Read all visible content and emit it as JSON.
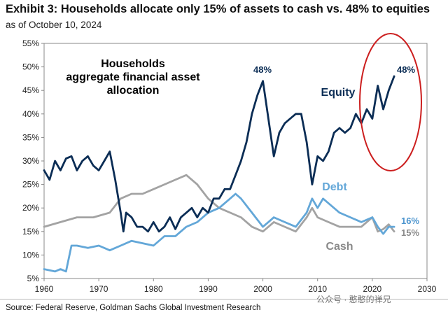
{
  "header": {
    "title": "Exhibit 3: Households allocate only 15% of assets to cash vs. 48% to equities",
    "subtitle": "as of October 10, 2024"
  },
  "footer": {
    "source": "Source: Federal Reserve, Goldman Sachs Global Investment Research",
    "watermark": "公众号 · 憨憨的禅兄"
  },
  "chart_data": {
    "type": "line",
    "title": "Exhibit 3: Households allocate only 15% of assets to cash vs. 48% to equities",
    "subtitle": "as of October 10, 2024",
    "xlabel": "",
    "ylabel": "",
    "xlim": [
      1960,
      2030
    ],
    "ylim": [
      5,
      55
    ],
    "x_ticks": [
      "1960",
      "1970",
      "1980",
      "1990",
      "2000",
      "2010",
      "2020",
      "2030"
    ],
    "y_ticks": [
      "5%",
      "10%",
      "15%",
      "20%",
      "25%",
      "30%",
      "35%",
      "40%",
      "45%",
      "50%",
      "55%"
    ],
    "grid": false,
    "legend": "none",
    "annotations": {
      "panel_label": [
        "Households",
        "aggregate financial asset",
        "allocation"
      ],
      "equity_peak": "48%",
      "equity_end": "48%",
      "debt_end": "16%",
      "cash_end": "15%"
    },
    "series": [
      {
        "name": "Equity",
        "color": "#0b2d55",
        "points": [
          [
            1960,
            28
          ],
          [
            1961,
            26
          ],
          [
            1962,
            30
          ],
          [
            1963,
            28
          ],
          [
            1964,
            30.5
          ],
          [
            1965,
            31
          ],
          [
            1966,
            28
          ],
          [
            1967,
            30
          ],
          [
            1968,
            31
          ],
          [
            1969,
            29
          ],
          [
            1970,
            28
          ],
          [
            1971,
            30
          ],
          [
            1972,
            32
          ],
          [
            1973,
            26
          ],
          [
            1974,
            19
          ],
          [
            1974.5,
            15
          ],
          [
            1975,
            19
          ],
          [
            1976,
            18
          ],
          [
            1977,
            16
          ],
          [
            1978,
            16
          ],
          [
            1979,
            15
          ],
          [
            1980,
            17
          ],
          [
            1981,
            15
          ],
          [
            1982,
            16
          ],
          [
            1983,
            18
          ],
          [
            1984,
            15.5
          ],
          [
            1985,
            18
          ],
          [
            1986,
            19
          ],
          [
            1987,
            20
          ],
          [
            1988,
            18
          ],
          [
            1989,
            20
          ],
          [
            1990,
            19
          ],
          [
            1991,
            22
          ],
          [
            1992,
            22
          ],
          [
            1993,
            24
          ],
          [
            1994,
            24
          ],
          [
            1995,
            27
          ],
          [
            1996,
            30
          ],
          [
            1997,
            34
          ],
          [
            1998,
            40
          ],
          [
            1999,
            44
          ],
          [
            2000,
            47
          ],
          [
            2001,
            39
          ],
          [
            2002,
            31
          ],
          [
            2003,
            36
          ],
          [
            2004,
            38
          ],
          [
            2005,
            39
          ],
          [
            2006,
            40
          ],
          [
            2007,
            40
          ],
          [
            2008,
            34
          ],
          [
            2009,
            25
          ],
          [
            2010,
            31
          ],
          [
            2011,
            30
          ],
          [
            2012,
            32
          ],
          [
            2013,
            36
          ],
          [
            2014,
            37
          ],
          [
            2015,
            36
          ],
          [
            2016,
            37
          ],
          [
            2017,
            40
          ],
          [
            2018,
            38
          ],
          [
            2019,
            41
          ],
          [
            2020,
            39
          ],
          [
            2021,
            46
          ],
          [
            2022,
            41
          ],
          [
            2023,
            45
          ],
          [
            2024,
            48
          ]
        ]
      },
      {
        "name": "Debt",
        "color": "#63a7d8",
        "points": [
          [
            1960,
            7
          ],
          [
            1962,
            6.5
          ],
          [
            1963,
            7
          ],
          [
            1964,
            6.5
          ],
          [
            1965,
            12
          ],
          [
            1966,
            12
          ],
          [
            1968,
            11.5
          ],
          [
            1970,
            12
          ],
          [
            1972,
            11
          ],
          [
            1974,
            12
          ],
          [
            1976,
            13
          ],
          [
            1978,
            12.5
          ],
          [
            1980,
            12
          ],
          [
            1982,
            14
          ],
          [
            1984,
            14
          ],
          [
            1986,
            16
          ],
          [
            1988,
            17
          ],
          [
            1990,
            19
          ],
          [
            1992,
            20
          ],
          [
            1994,
            22
          ],
          [
            1995,
            23
          ],
          [
            1996,
            22
          ],
          [
            1998,
            19
          ],
          [
            2000,
            16
          ],
          [
            2001,
            17
          ],
          [
            2002,
            18
          ],
          [
            2004,
            17
          ],
          [
            2006,
            16
          ],
          [
            2008,
            19
          ],
          [
            2009,
            22
          ],
          [
            2010,
            20
          ],
          [
            2011,
            22
          ],
          [
            2012,
            21
          ],
          [
            2014,
            19
          ],
          [
            2016,
            18
          ],
          [
            2018,
            17
          ],
          [
            2020,
            18
          ],
          [
            2021,
            16
          ],
          [
            2022,
            14.5
          ],
          [
            2023,
            16
          ],
          [
            2024,
            16
          ]
        ]
      },
      {
        "name": "Cash",
        "color": "#a3a3a3",
        "points": [
          [
            1960,
            16
          ],
          [
            1963,
            17
          ],
          [
            1966,
            18
          ],
          [
            1969,
            18
          ],
          [
            1972,
            19
          ],
          [
            1974,
            22
          ],
          [
            1976,
            23
          ],
          [
            1978,
            23
          ],
          [
            1980,
            24
          ],
          [
            1982,
            25
          ],
          [
            1984,
            26
          ],
          [
            1986,
            27
          ],
          [
            1988,
            25
          ],
          [
            1990,
            22
          ],
          [
            1992,
            20
          ],
          [
            1994,
            19
          ],
          [
            1996,
            18
          ],
          [
            1998,
            16
          ],
          [
            2000,
            15
          ],
          [
            2002,
            17
          ],
          [
            2004,
            16
          ],
          [
            2006,
            15
          ],
          [
            2008,
            18
          ],
          [
            2009,
            20
          ],
          [
            2010,
            18
          ],
          [
            2012,
            17
          ],
          [
            2014,
            16
          ],
          [
            2016,
            16
          ],
          [
            2018,
            16
          ],
          [
            2020,
            18
          ],
          [
            2021,
            15
          ],
          [
            2022,
            15.5
          ],
          [
            2023,
            16.5
          ],
          [
            2024,
            15
          ]
        ]
      }
    ]
  }
}
